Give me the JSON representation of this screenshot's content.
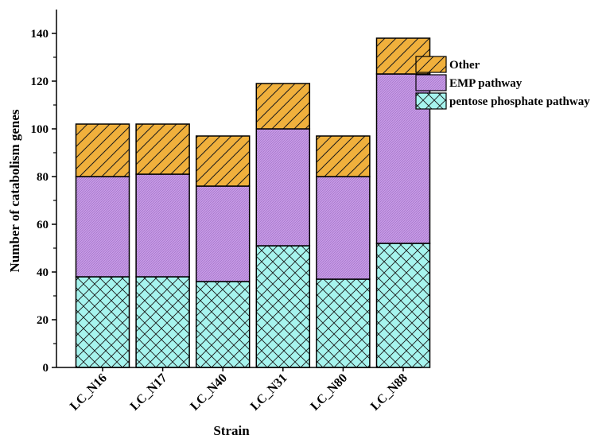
{
  "chart_data": {
    "type": "bar",
    "stacked": true,
    "title": "",
    "xlabel": "Strain",
    "ylabel": "Number of catabolism genes",
    "categories": [
      "LC_N16",
      "LC_N17",
      "LC_N40",
      "LC_N31",
      "LC_N80",
      "LC_N88"
    ],
    "ylim": [
      0,
      150
    ],
    "yticks": [
      0,
      20,
      40,
      60,
      80,
      100,
      120,
      140
    ],
    "grid": false,
    "legend_position": "top-right",
    "series": [
      {
        "name": "pentose phosphate pathway",
        "values": [
          38,
          38,
          36,
          51,
          37,
          52
        ],
        "color": "#a6f4ee",
        "pattern": "crosshatch"
      },
      {
        "name": "EMP pathway",
        "values": [
          42,
          43,
          40,
          49,
          43,
          71
        ],
        "color": "#c79ae6",
        "pattern": "fine-dots"
      },
      {
        "name": "Other",
        "values": [
          22,
          21,
          21,
          19,
          17,
          15
        ],
        "color": "#f0b03c",
        "pattern": "diagonal"
      }
    ]
  }
}
